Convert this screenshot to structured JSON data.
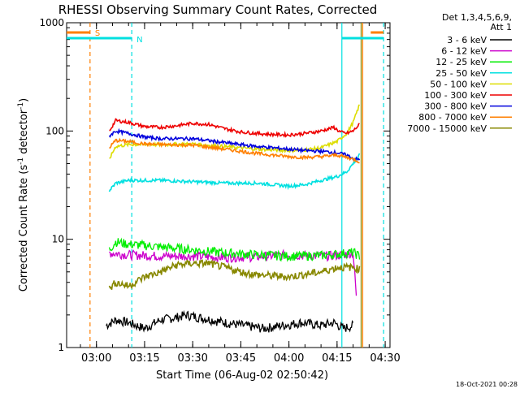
{
  "chart_data": {
    "type": "line",
    "title": "RHESSI Observing Summary Count Rates, Corrected",
    "xlabel": "Start Time (06-Aug-02 02:50:42)",
    "ylabel_main": "Corrected Count Rate (s",
    "ylabel_sup1": "-1",
    "ylabel_mid": " detector",
    "ylabel_sup2": "-1",
    "ylabel_end": ")",
    "y_scale": "log",
    "ylim": [
      1,
      1000
    ],
    "x_ticks": [
      "03:00",
      "03:15",
      "03:30",
      "03:45",
      "04:00",
      "04:15",
      "04:30"
    ],
    "x_tick_minutes": [
      180,
      195,
      210,
      225,
      240,
      255,
      270
    ],
    "xlim_minutes": [
      170.7,
      271.5
    ],
    "y_ticks": [
      {
        "value": 1,
        "label": "1"
      },
      {
        "value": 10,
        "label": "10"
      },
      {
        "value": 100,
        "label": "100"
      },
      {
        "value": 1000,
        "label": "1000"
      }
    ],
    "legend_header": [
      "Det 1,3,4,5,6,9,",
      "Att 1"
    ],
    "legend_placement": "right",
    "series": [
      {
        "name": "3 - 6 keV",
        "color": "#000000",
        "x": [
          183,
          186,
          190,
          195,
          200,
          205,
          208,
          212,
          216,
          220,
          226,
          232,
          238,
          244,
          250,
          254,
          257,
          260
        ],
        "y": [
          1.6,
          1.8,
          1.7,
          1.5,
          1.8,
          1.9,
          2.0,
          1.9,
          1.8,
          1.7,
          1.6,
          1.5,
          1.6,
          1.7,
          1.6,
          1.7,
          1.5,
          1.6
        ]
      },
      {
        "name": "6 - 12 keV",
        "color": "#cc00cc",
        "x": [
          184,
          190,
          200,
          210,
          220,
          230,
          240,
          250,
          255,
          258,
          260,
          261
        ],
        "y": [
          7.5,
          7.2,
          7.0,
          7.0,
          6.8,
          6.9,
          7.2,
          7.0,
          7.1,
          7.3,
          7.5,
          3.0
        ]
      },
      {
        "name": "12 - 25 keV",
        "color": "#00ee00",
        "x": [
          184,
          186,
          190,
          195,
          200,
          210,
          220,
          230,
          240,
          250,
          255,
          260,
          262
        ],
        "y": [
          8.0,
          9.5,
          9.0,
          8.8,
          8.5,
          8.0,
          7.5,
          7.2,
          7.0,
          7.1,
          7.3,
          7.6,
          7.0
        ]
      },
      {
        "name": "25 - 50 keV",
        "color": "#00e0e0",
        "x": [
          184,
          186,
          190,
          200,
          210,
          220,
          230,
          240,
          245,
          250,
          255,
          258,
          260,
          262
        ],
        "y": [
          28,
          33,
          35,
          35,
          34,
          33,
          33,
          31,
          32,
          35,
          38,
          42,
          50,
          60
        ]
      },
      {
        "name": "50 - 100 keV",
        "color": "#dddd00",
        "x": [
          184,
          186,
          190,
          200,
          210,
          220,
          230,
          240,
          245,
          250,
          255,
          258,
          260,
          262
        ],
        "y": [
          55,
          72,
          75,
          75,
          76,
          72,
          68,
          66,
          67,
          70,
          80,
          95,
          120,
          175
        ]
      },
      {
        "name": "100 - 300 keV",
        "color": "#ee0000",
        "x": [
          184,
          186,
          190,
          195,
          200,
          205,
          210,
          215,
          220,
          225,
          230,
          235,
          240,
          245,
          250,
          254,
          256,
          258,
          260,
          262
        ],
        "y": [
          100,
          125,
          120,
          110,
          108,
          112,
          118,
          115,
          105,
          98,
          95,
          93,
          92,
          95,
          100,
          108,
          98,
          95,
          100,
          115
        ]
      },
      {
        "name": "300 - 800 keV",
        "color": "#0000dd",
        "x": [
          184,
          186,
          190,
          195,
          200,
          210,
          220,
          230,
          240,
          245,
          250,
          255,
          258,
          260,
          262
        ],
        "y": [
          90,
          100,
          95,
          88,
          85,
          85,
          78,
          72,
          68,
          66,
          65,
          63,
          60,
          56,
          54
        ]
      },
      {
        "name": "800 - 7000 keV",
        "color": "#ff7f00",
        "x": [
          184,
          186,
          190,
          195,
          200,
          210,
          220,
          230,
          240,
          245,
          250,
          255,
          258,
          260,
          262
        ],
        "y": [
          70,
          82,
          80,
          76,
          75,
          74,
          68,
          62,
          58,
          57,
          58,
          60,
          57,
          55,
          52
        ]
      },
      {
        "name": "7000 - 15000 keV",
        "color": "#888800",
        "x": [
          184,
          186,
          190,
          195,
          200,
          205,
          210,
          215,
          220,
          225,
          230,
          240,
          250,
          255,
          260,
          262
        ],
        "y": [
          3.5,
          4.0,
          3.7,
          4.5,
          5.0,
          5.8,
          6.0,
          6.0,
          5.5,
          5.0,
          4.7,
          4.5,
          5.0,
          5.5,
          5.5,
          5.3
        ]
      }
    ],
    "annotations": [
      {
        "label": "S",
        "color": "#ff7f00",
        "minute": 178
      },
      {
        "label": "N",
        "color": "#00e0e0",
        "minute": 191
      }
    ],
    "events": [
      {
        "minute": 178,
        "color": "#ff7f00",
        "style": "dashed"
      },
      {
        "minute": 191,
        "color": "#00e0e0",
        "style": "dashed"
      },
      {
        "minute": 256.5,
        "color": "#00e0e0",
        "style": "solid"
      },
      {
        "minute": 263,
        "color": "#ff7f00",
        "style": "solid"
      },
      {
        "minute": 262.5,
        "color": "#888800",
        "style": "solid"
      },
      {
        "minute": 269.5,
        "color": "#00e0e0",
        "style": "dashed"
      }
    ],
    "footer_date": "18-Oct-2021 00:28"
  }
}
